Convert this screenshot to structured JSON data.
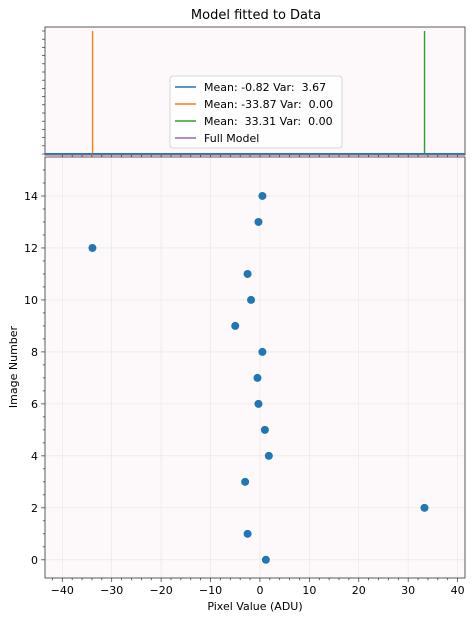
{
  "chart_data": [
    {
      "type": "line",
      "title": "Model fitted to Data",
      "xlabel": "",
      "ylabel": "",
      "xlim": [
        -43.5,
        41.5
      ],
      "grid": false,
      "legend_position": "center",
      "series": [
        {
          "name": "Mean: -0.82 Var:  3.67",
          "color": "#1f77b4"
        },
        {
          "name": "Mean: -33.87 Var:  0.00",
          "color": "#ff7f0e",
          "x": -33.87
        },
        {
          "name": "Mean:  33.31 Var:  0.00",
          "color": "#2ca02c",
          "x": 33.31
        },
        {
          "name": "Full Model",
          "color": "#9467bd"
        }
      ]
    },
    {
      "type": "scatter",
      "title": "",
      "xlabel": "Pixel Value (ADU)",
      "ylabel": "Image Number",
      "xlim": [
        -43.5,
        41.5
      ],
      "ylim": [
        -0.7,
        15.5
      ],
      "grid": true,
      "x_ticks": [
        -40,
        -30,
        -20,
        -10,
        0,
        10,
        20,
        30,
        40
      ],
      "x_tick_labels": [
        "−40",
        "−30",
        "−20",
        "−10",
        "0",
        "10",
        "20",
        "30",
        "40"
      ],
      "y_ticks": [
        0,
        2,
        4,
        6,
        8,
        10,
        12,
        14
      ],
      "y_tick_labels": [
        "0",
        "2",
        "4",
        "6",
        "8",
        "10",
        "12",
        "14"
      ],
      "marker_color": "#1f77b4",
      "points": [
        {
          "x": 1.2,
          "y": 0
        },
        {
          "x": -2.5,
          "y": 1
        },
        {
          "x": 33.3,
          "y": 2
        },
        {
          "x": -3.0,
          "y": 3
        },
        {
          "x": 1.8,
          "y": 4
        },
        {
          "x": 1.0,
          "y": 5
        },
        {
          "x": -0.3,
          "y": 6
        },
        {
          "x": -0.5,
          "y": 7
        },
        {
          "x": 0.5,
          "y": 8
        },
        {
          "x": -5.0,
          "y": 9
        },
        {
          "x": -1.8,
          "y": 10
        },
        {
          "x": -2.5,
          "y": 11
        },
        {
          "x": -33.9,
          "y": 12
        },
        {
          "x": -0.3,
          "y": 13
        },
        {
          "x": 0.5,
          "y": 14
        }
      ]
    }
  ]
}
